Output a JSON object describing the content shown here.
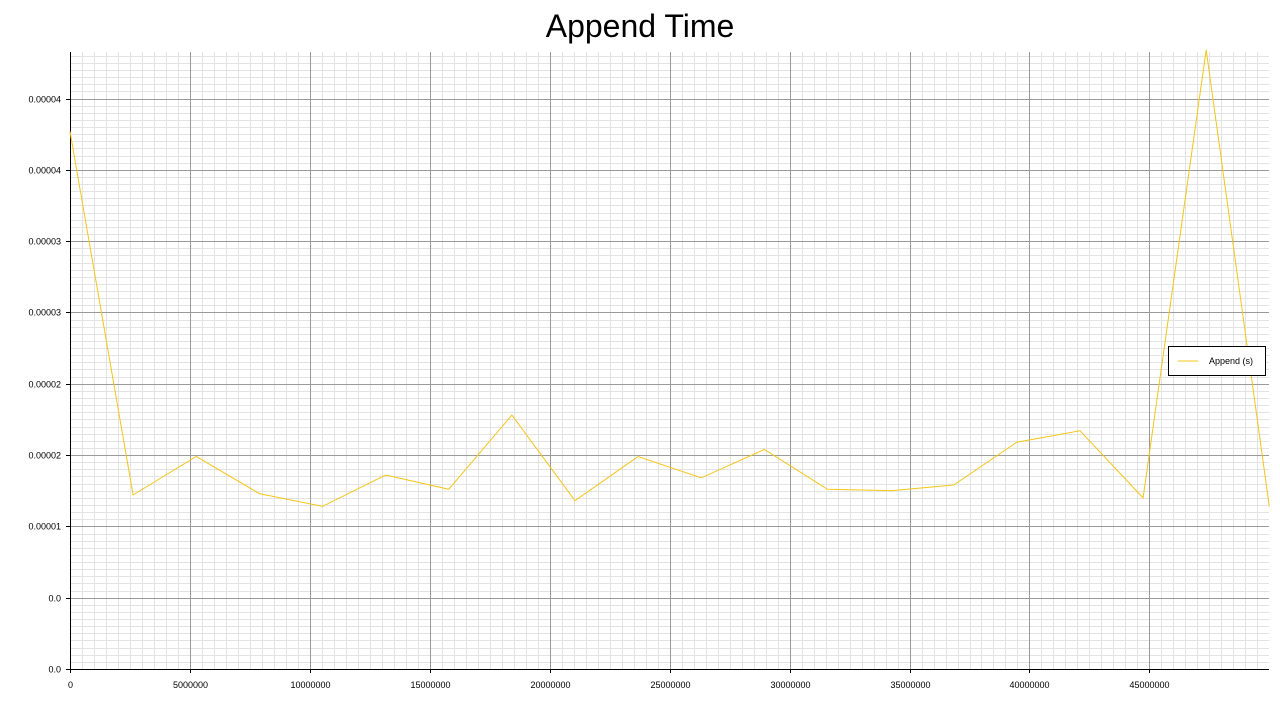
{
  "chart_data": {
    "type": "line",
    "title": "Append Time",
    "xlabel": "",
    "ylabel": "",
    "xlim": [
      0,
      50000000
    ],
    "ylim": [
      0.0,
      4.35e-05
    ],
    "x_ticks": [
      0,
      5000000,
      10000000,
      15000000,
      20000000,
      25000000,
      30000000,
      35000000,
      40000000,
      45000000
    ],
    "x_tick_labels": [
      "0",
      "5000000",
      "10000000",
      "15000000",
      "20000000",
      "25000000",
      "30000000",
      "35000000",
      "40000000",
      "45000000"
    ],
    "y_ticks": [
      0.0,
      5e-06,
      1e-05,
      1.5e-05,
      2e-05,
      2.5e-05,
      3e-05,
      3.5e-05,
      4e-05
    ],
    "y_tick_labels": [
      "0.0",
      "0.0",
      "0.00001",
      "0.00002",
      "0.00002",
      "0.00003",
      "0.00003",
      "0.00004",
      "0.00004"
    ],
    "grid": true,
    "legend_position": "right",
    "series": [
      {
        "name": "Append (s)",
        "color": "#f5c518",
        "x": [
          0,
          2631578,
          5263157,
          7894736,
          10526315,
          13157894,
          15789473,
          18421052,
          21052631,
          23684210,
          26315789,
          28947368,
          31578947,
          34210526,
          36842105,
          39473684,
          42105263,
          44736842,
          47368421,
          50000000
        ],
        "y": [
          3.77e-05,
          1.22e-05,
          1.49e-05,
          1.23e-05,
          1.14e-05,
          1.36e-05,
          1.26e-05,
          1.78e-05,
          1.18e-05,
          1.49e-05,
          1.34e-05,
          1.54e-05,
          1.26e-05,
          1.25e-05,
          1.29e-05,
          1.59e-05,
          1.67e-05,
          1.2e-05,
          4.34e-05,
          1.14e-05
        ]
      }
    ]
  }
}
